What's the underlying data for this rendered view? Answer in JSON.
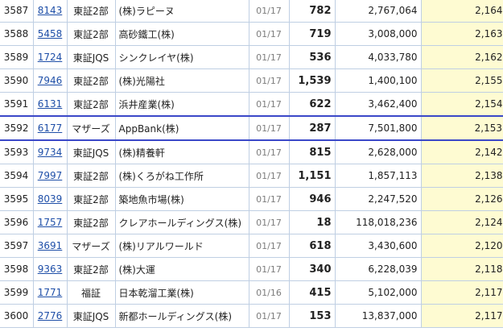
{
  "rows": [
    {
      "rank": "3587",
      "code": "8143",
      "market": "東証2部",
      "name": "(株)ラピーヌ",
      "date": "01/17",
      "price": "782",
      "volume": "2,767,064",
      "value": "2,164"
    },
    {
      "rank": "3588",
      "code": "5458",
      "market": "東証2部",
      "name": "高砂鐵工(株)",
      "date": "01/17",
      "price": "719",
      "volume": "3,008,000",
      "value": "2,163"
    },
    {
      "rank": "3589",
      "code": "1724",
      "market": "東証JQS",
      "name": "シンクレイヤ(株)",
      "date": "01/17",
      "price": "536",
      "volume": "4,033,780",
      "value": "2,162"
    },
    {
      "rank": "3590",
      "code": "7946",
      "market": "東証2部",
      "name": "(株)光陽社",
      "date": "01/17",
      "price": "1,539",
      "volume": "1,400,100",
      "value": "2,155"
    },
    {
      "rank": "3591",
      "code": "6131",
      "market": "東証2部",
      "name": "浜井産業(株)",
      "date": "01/17",
      "price": "622",
      "volume": "3,462,400",
      "value": "2,154"
    },
    {
      "rank": "3592",
      "code": "6177",
      "market": "マザーズ",
      "name": "AppBank(株)",
      "date": "01/17",
      "price": "287",
      "volume": "7,501,800",
      "value": "2,153",
      "highlight": true
    },
    {
      "rank": "3593",
      "code": "9734",
      "market": "東証JQS",
      "name": "(株)精養軒",
      "date": "01/17",
      "price": "815",
      "volume": "2,628,000",
      "value": "2,142"
    },
    {
      "rank": "3594",
      "code": "7997",
      "market": "東証2部",
      "name": "(株)くろがね工作所",
      "date": "01/17",
      "price": "1,151",
      "volume": "1,857,113",
      "value": "2,138"
    },
    {
      "rank": "3595",
      "code": "8039",
      "market": "東証2部",
      "name": "築地魚市場(株)",
      "date": "01/17",
      "price": "946",
      "volume": "2,247,520",
      "value": "2,126"
    },
    {
      "rank": "3596",
      "code": "1757",
      "market": "東証2部",
      "name": "クレアホールディングス(株)",
      "date": "01/17",
      "price": "18",
      "volume": "118,018,236",
      "value": "2,124"
    },
    {
      "rank": "3597",
      "code": "3691",
      "market": "マザーズ",
      "name": "(株)リアルワールド",
      "date": "01/17",
      "price": "618",
      "volume": "3,430,600",
      "value": "2,120"
    },
    {
      "rank": "3598",
      "code": "9363",
      "market": "東証2部",
      "name": "(株)大運",
      "date": "01/17",
      "price": "340",
      "volume": "6,228,039",
      "value": "2,118"
    },
    {
      "rank": "3599",
      "code": "1771",
      "market": "福証",
      "name": "日本乾溜工業(株)",
      "date": "01/16",
      "price": "415",
      "volume": "5,102,000",
      "value": "2,117"
    },
    {
      "rank": "3600",
      "code": "2776",
      "market": "東証JQS",
      "name": "新都ホールディングス(株)",
      "date": "01/17",
      "price": "153",
      "volume": "13,837,000",
      "value": "2,117"
    }
  ]
}
